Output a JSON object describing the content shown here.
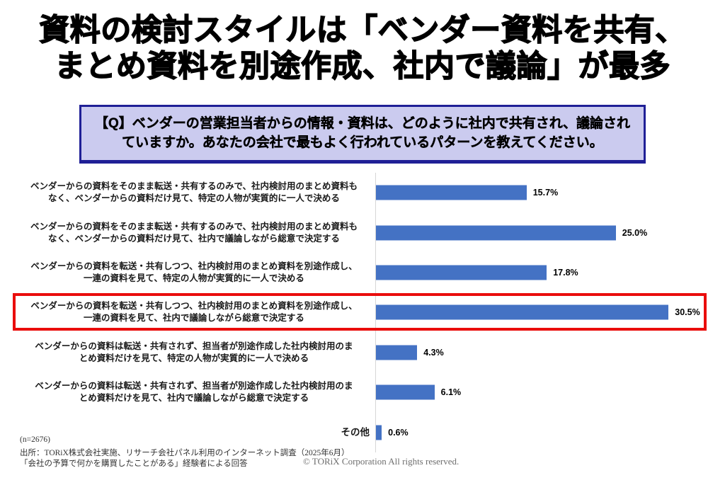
{
  "title": {
    "line1": "資料の検討スタイルは「ベンダー資料を共有、",
    "line2": "まとめ資料を別途作成、社内で議論」が最多"
  },
  "question": {
    "text": "【Q】ベンダーの営業担当者からの情報・資料は、どのように社内で共有され、議論されていますか。あなたの会社で最もよく行われているパターンを教えてください。"
  },
  "chart_data": {
    "type": "bar",
    "orientation": "horizontal",
    "unit": "%",
    "xlim": [
      0,
      35
    ],
    "grid": false,
    "bar_color": "#4472C4",
    "highlight_border_color": "#EA0D0C",
    "highlighted_index": 3,
    "categories": [
      {
        "line1": "ベンダーからの資料をそのまま転送・共有するのみで、社内検討用のまとめ資料も",
        "line2": "なく、ベンダーからの資料だけ見て、特定の人物が実質的に一人で決める",
        "value": 15.7,
        "display": "15.7%"
      },
      {
        "line1": "ベンダーからの資料をそのまま転送・共有するのみで、社内検討用のまとめ資料も",
        "line2": "なく、ベンダーからの資料だけ見て、社内で議論しながら総意で決定する",
        "value": 25.0,
        "display": "25.0%"
      },
      {
        "line1": "ベンダーからの資料を転送・共有しつつ、社内検討用のまとめ資料を別途作成し、",
        "line2": "一連の資料を見て、特定の人物が実質的に一人で決める",
        "value": 17.8,
        "display": "17.8%"
      },
      {
        "line1": "ベンダーからの資料を転送・共有しつつ、社内検討用のまとめ資料を別途作成し、",
        "line2": "一連の資料を見て、社内で議論しながら総意で決定する",
        "value": 30.5,
        "display": "30.5%"
      },
      {
        "line1": "ベンダーからの資料は転送・共有されず、担当者が別途作成した社内検討用のま",
        "line2": "とめ資料だけを見て、特定の人物が実質的に一人で決める",
        "value": 4.3,
        "display": "4.3%"
      },
      {
        "line1": "ベンダーからの資料は転送・共有されず、担当者が別途作成した社内検討用のま",
        "line2": "とめ資料だけを見て、社内で議論しながら総意で決定する",
        "value": 6.1,
        "display": "6.1%"
      },
      {
        "line1": "その他",
        "line2": "",
        "value": 0.6,
        "display": "0.6%"
      }
    ]
  },
  "footnotes": {
    "sample": "(n=2676)",
    "source_line1": "出所：TORiX株式会社実施、リサーチ会社パネル利用のインターネット調査（2025年6月）",
    "source_line2": "「会社の予算で何かを購買したことがある」経験者による回答"
  },
  "copyright": "© TORiX Corporation All rights reserved."
}
